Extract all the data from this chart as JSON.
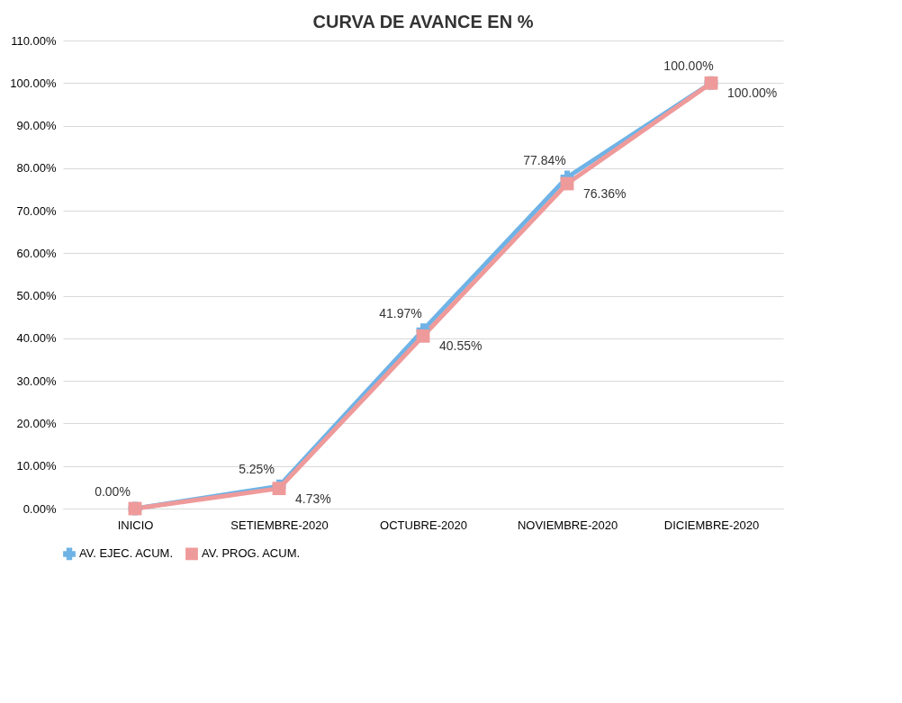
{
  "chart_data": {
    "type": "line",
    "title": "CURVA DE AVANCE EN %",
    "categories": [
      "INICIO",
      "SETIEMBRE-2020",
      "OCTUBRE-2020",
      "NOVIEMBRE-2020",
      "DICIEMBRE-2020"
    ],
    "series": [
      {
        "name": "AV. EJEC. ACUM.",
        "color": "#6fb3e6",
        "marker": "cross",
        "values": [
          0,
          5.25,
          41.97,
          77.84,
          100
        ],
        "value_labels": [
          "0.00%",
          "5.25%",
          "41.97%",
          "77.84%",
          "100.00%"
        ]
      },
      {
        "name": "AV. PROG. ACUM.",
        "color": "#ef9a9a",
        "marker": "square",
        "values": [
          0,
          4.73,
          40.55,
          76.36,
          100
        ],
        "value_labels": [
          null,
          "4.73%",
          "40.55%",
          "76.36%",
          "100.00%"
        ]
      }
    ],
    "ylim": [
      0,
      110
    ],
    "yticks": [
      {
        "value": 0,
        "label": "0.00%"
      },
      {
        "value": 10,
        "label": "10.00%"
      },
      {
        "value": 20,
        "label": "20.00%"
      },
      {
        "value": 30,
        "label": "30.00%"
      },
      {
        "value": 40,
        "label": "40.00%"
      },
      {
        "value": 50,
        "label": "50.00%"
      },
      {
        "value": 60,
        "label": "60.00%"
      },
      {
        "value": 70,
        "label": "70.00%"
      },
      {
        "value": 80,
        "label": "80.00%"
      },
      {
        "value": 90,
        "label": "90.00%"
      },
      {
        "value": 100,
        "label": "100.00%"
      },
      {
        "value": 110,
        "label": "110.00%"
      }
    ],
    "grid": "y",
    "legend": "bottom",
    "line_style": "solid"
  }
}
